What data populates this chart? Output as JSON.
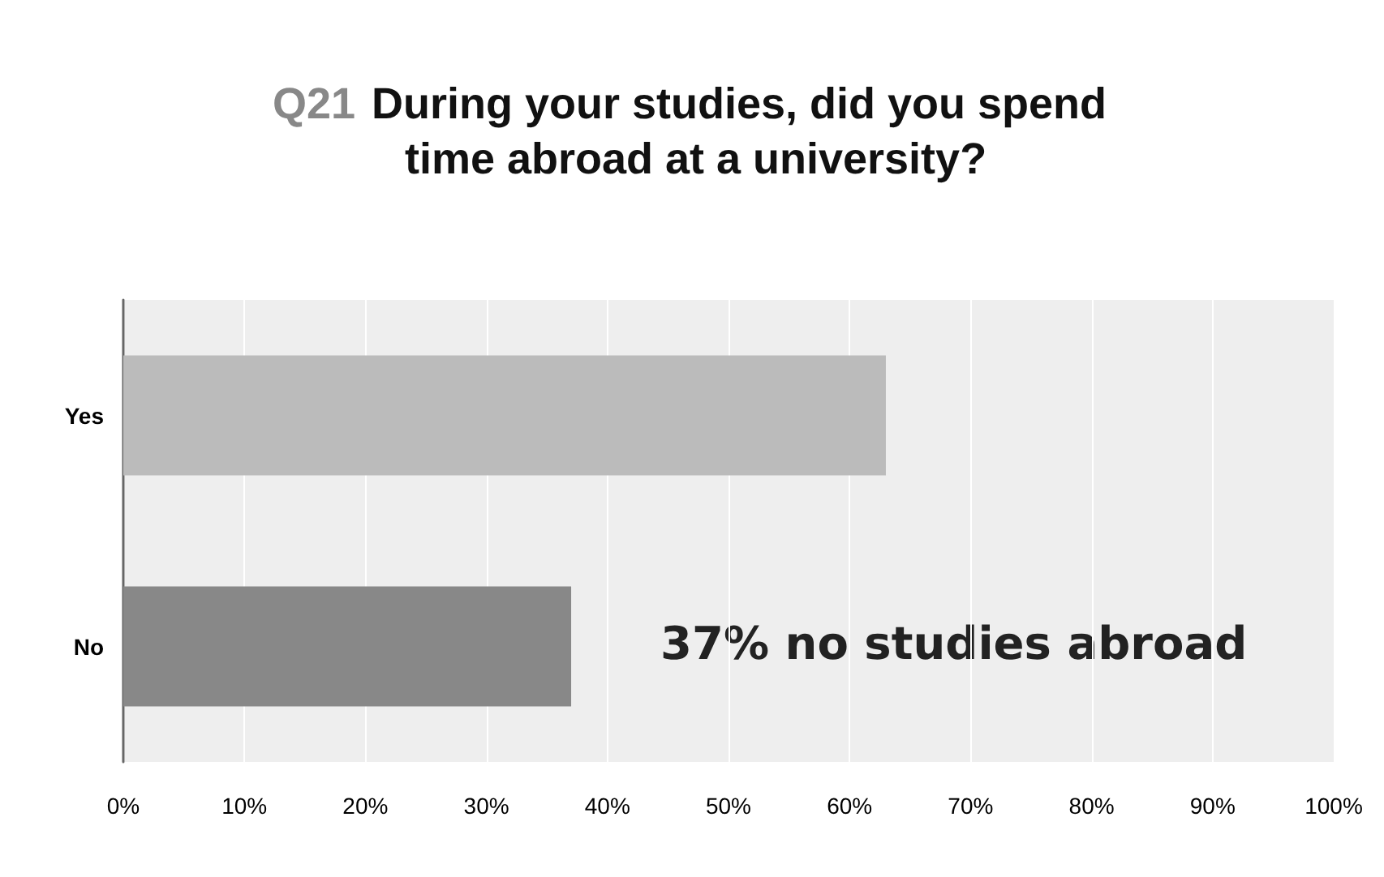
{
  "chart_data": {
    "type": "bar",
    "orientation": "horizontal",
    "title": "Q21 During your studies, did you spend time abroad at a university?",
    "categories": [
      "Yes",
      "No"
    ],
    "values": [
      63,
      37
    ],
    "colors": [
      "#bbbbbb",
      "#888888"
    ],
    "xlim": [
      0,
      100
    ],
    "xticks": [
      {
        "value": 0,
        "label": "0%"
      },
      {
        "value": 10,
        "label": "10%"
      },
      {
        "value": 20,
        "label": "20%"
      },
      {
        "value": 30,
        "label": "30%"
      },
      {
        "value": 40,
        "label": "40%"
      },
      {
        "value": 50,
        "label": "50%"
      },
      {
        "value": 60,
        "label": "60%"
      },
      {
        "value": 70,
        "label": "70%"
      },
      {
        "value": 80,
        "label": "80%"
      },
      {
        "value": 90,
        "label": "90%"
      },
      {
        "value": 100,
        "label": "100%"
      }
    ],
    "grid": "x",
    "annotations": [
      "37% no studies abroad"
    ]
  }
}
